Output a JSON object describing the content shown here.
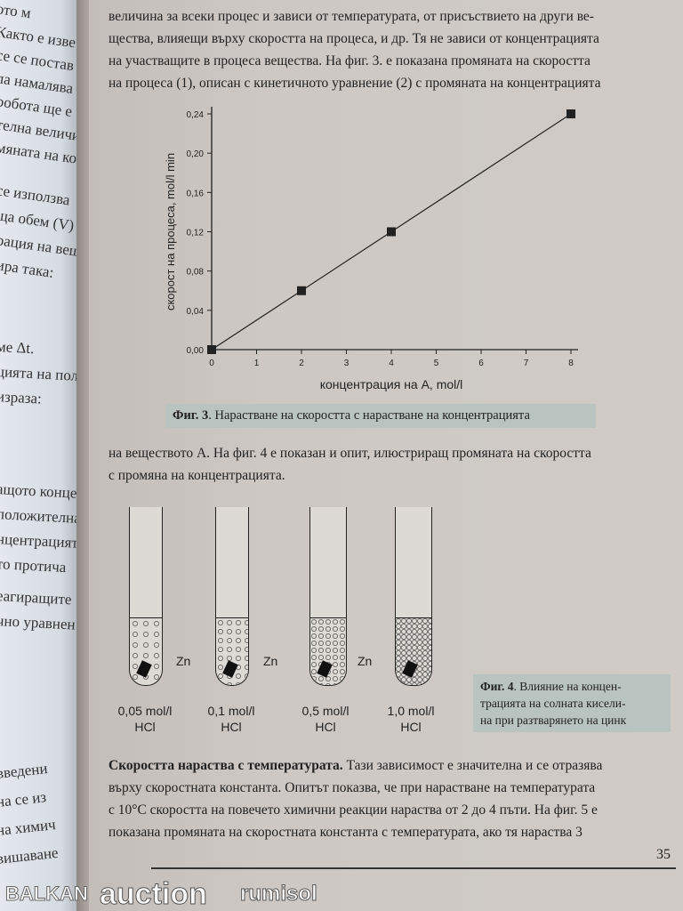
{
  "left_page": {
    "lines": [
      "ото м",
      "Както е изве",
      "се се постав",
      "ла намалява",
      "робота ще е",
      "телна величи",
      "мяната на ко",
      "се използва",
      "ща обем (V)",
      "рация на вещ",
      "ира така:",
      "ме Δt.",
      "цията на полу",
      "израза:",
      "ащото концен",
      "положителна ве",
      "нцентрацията, с",
      "то протича",
      "еагиращите",
      "чно уравнен",
      "введени",
      "на се из",
      "на химич",
      "вишаване"
    ]
  },
  "intro": {
    "lines": [
      "величина за всеки процес и зависи от температурата, от присъствието на други ве-",
      "щества, влияещи върху скоростта на процеса, и др. Тя не зависи от концентрацията",
      "на участващите в процеса вещества. На фиг. 3. е показана промяната на скоростта",
      "на процеса (1), описан с кинетичното уравнение (2) с промяната на концентрацията"
    ]
  },
  "chart_data": {
    "type": "line",
    "x": [
      0,
      2,
      4,
      8
    ],
    "y": [
      0,
      0.06,
      0.12,
      0.24
    ],
    "xlabel": "концентрация на А, mol/l",
    "ylabel": "скорост на процеса, mol/l min",
    "xlim": [
      0,
      8
    ],
    "ylim": [
      0,
      0.24
    ],
    "xticks": [
      "0",
      "1",
      "2",
      "3",
      "4",
      "5",
      "6",
      "7",
      "8"
    ],
    "yticks": [
      "0,00",
      "0,04",
      "0,08",
      "0,12",
      "0,16",
      "0,20",
      "0,24"
    ],
    "marker": "square",
    "grid": false
  },
  "fig3": {
    "label": "Фиг. 3",
    "text": ". Нарастване на скоростта с нарастване на концентрацията"
  },
  "mid": {
    "lines": [
      "на веществото А. На фиг. 4 е показан и опит, илюстриращ промяната на скоростта",
      "с промяна на концентрацията."
    ]
  },
  "tubes": [
    {
      "conc": "0,05 mol/l",
      "acid": "HCl"
    },
    {
      "conc": "0,1 mol/l",
      "acid": "HCl"
    },
    {
      "conc": "0,5 mol/l",
      "acid": "HCl"
    },
    {
      "conc": "1,0 mol/l",
      "acid": "HCl"
    }
  ],
  "zn": "Zn",
  "fig4": {
    "label": "Фиг. 4",
    "lines": [
      ". Влияние на концен-",
      "трацията на солната кисели-",
      "на при разтварянето на цинк"
    ]
  },
  "temp": {
    "bold": "Скоростта нараства с температурата.",
    "lines": [
      " Тази зависимост е значителна и се отразява",
      "върху скоростната константа. Опитът показва, че при нарастване на температурата",
      "с 10°C скоростта на повечето химични реакции нараства от 2 до 4 пъти. На фиг. 5 е",
      "показана промяната на скоростната константа с температурата, ако тя нараства 3"
    ]
  },
  "page_number": "35",
  "watermark": {
    "lines": [
      "BALKAN",
      "auction",
      "rumisol"
    ]
  }
}
